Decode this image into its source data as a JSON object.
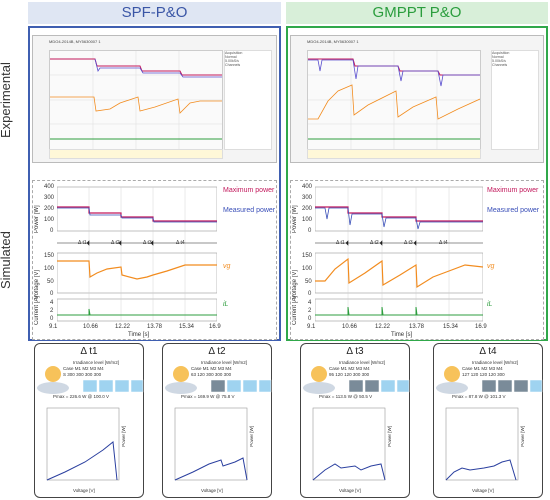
{
  "headers": {
    "left": "SPF-P&O",
    "right": "GMPPT P&O"
  },
  "row_labels": {
    "experimental": "Experimental",
    "simulated": "Simulated"
  },
  "scope": {
    "model": "MDO4-2014B, MY5630007 1",
    "side": [
      "Acquisition",
      "Normal",
      "5.00kS/s",
      "Channels"
    ]
  },
  "sim": {
    "power_ylabel": "Power [W]",
    "voltage_ylabel": "Voltage [V]",
    "current_ylabel": "Current [A]",
    "xlabel": "Time [s]",
    "power_ticks": [
      "400",
      "300",
      "200",
      "100",
      "0"
    ],
    "voltage_ticks": [
      "150",
      "100",
      "50",
      "0"
    ],
    "current_ticks": [
      "4",
      "2",
      "0"
    ],
    "time_ticks": [
      "9.1",
      "10.66",
      "12.22",
      "13.78",
      "15.34",
      "16.9"
    ],
    "legend_max": "Maximum power",
    "legend_meas": "Measured power",
    "vg_label": "vg",
    "il_label": "iL",
    "deltas": [
      "Δ t1",
      "Δ t2",
      "Δ t3",
      "Δ t4"
    ]
  },
  "cards": [
    {
      "title": "Δ t1",
      "irr_label": "Irradiance level [W/m2]",
      "cases": [
        "Case",
        "M1",
        "M2",
        "M3",
        "M4"
      ],
      "values": [
        "S",
        "300",
        "300",
        "300",
        "300"
      ],
      "pmax": "Pmax = 226.6 W @ 100.0 V"
    },
    {
      "title": "Δ t2",
      "irr_label": "Irradiance level [W/m2]",
      "cases": [
        "Case",
        "M1",
        "M2",
        "M3",
        "M4"
      ],
      "values": [
        "63",
        "120",
        "300",
        "300",
        "300"
      ],
      "pmax": "Pmax = 169.9 W @ 75.8 V"
    },
    {
      "title": "Δ t3",
      "irr_label": "Irradiance level [W/m2]",
      "cases": [
        "Case",
        "M1",
        "M2",
        "M3",
        "M4"
      ],
      "values": [
        "95",
        "120",
        "120",
        "300",
        "300"
      ],
      "pmax": "Pmax = 113.5 W @ 50.5 V"
    },
    {
      "title": "Δ t4",
      "irr_label": "Irradiance level [W/m2]",
      "cases": [
        "Case",
        "M1",
        "M2",
        "M3",
        "M4"
      ],
      "values": [
        "127",
        "120",
        "120",
        "120",
        "300"
      ],
      "pmax": "Pmax = 87.8 W @ 101.3 V"
    }
  ],
  "pv_axis": {
    "xlabel": "Voltage [V]",
    "ylabel": "Power [W]",
    "x_ticks": [
      "0",
      "50",
      "100",
      "150"
    ],
    "y_ticks": [
      "300",
      "200",
      "100",
      "0"
    ]
  }
}
